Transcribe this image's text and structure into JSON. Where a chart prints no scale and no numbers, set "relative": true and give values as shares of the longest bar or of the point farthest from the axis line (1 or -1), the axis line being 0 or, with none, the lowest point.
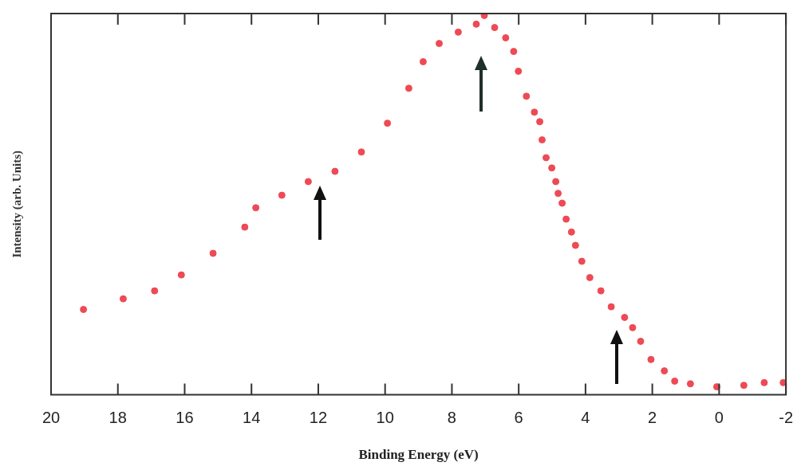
{
  "chart_data": {
    "type": "scatter",
    "relative": true,
    "xlabel": "Binding Energy (eV)",
    "ylabel": "Intensity (arb. Units)",
    "xlim": [
      20,
      -2
    ],
    "xticks": [
      20,
      18,
      16,
      14,
      12,
      10,
      8,
      6,
      4,
      2,
      0,
      -2
    ],
    "marker": "circle",
    "legend": false,
    "series": [
      {
        "color": "#ee4a55",
        "x": [
          19.03,
          17.84,
          16.9,
          16.1,
          15.15,
          14.2,
          13.87,
          13.09,
          12.3,
          11.5,
          10.71,
          9.93,
          9.29,
          8.86,
          8.38,
          7.81,
          7.27,
          7.03,
          6.72,
          6.39,
          6.15,
          6.01,
          5.77,
          5.53,
          5.37,
          5.3,
          5.18,
          5.01,
          4.89,
          4.82,
          4.7,
          4.58,
          4.42,
          4.3,
          4.11,
          3.87,
          3.54,
          3.23,
          2.83,
          2.59,
          2.35,
          2.04,
          1.64,
          1.33,
          0.86,
          0.07,
          -0.74,
          -1.35,
          -1.92
        ],
        "values": [
          0.225,
          0.253,
          0.274,
          0.316,
          0.373,
          0.442,
          0.493,
          0.526,
          0.562,
          0.589,
          0.64,
          0.716,
          0.808,
          0.878,
          0.926,
          0.956,
          0.977,
          1.0,
          0.968,
          0.941,
          0.905,
          0.853,
          0.787,
          0.745,
          0.72,
          0.672,
          0.625,
          0.598,
          0.562,
          0.531,
          0.505,
          0.463,
          0.429,
          0.394,
          0.352,
          0.309,
          0.274,
          0.232,
          0.204,
          0.177,
          0.141,
          0.093,
          0.063,
          0.036,
          0.029,
          0.021,
          0.025,
          0.032,
          0.032
        ]
      }
    ]
  }
}
